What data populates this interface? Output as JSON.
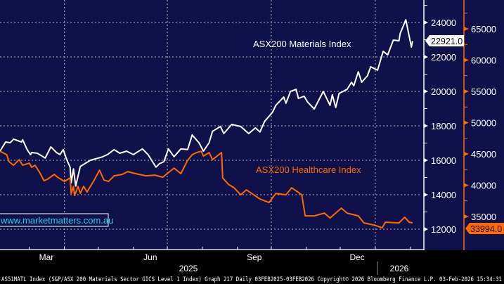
{
  "chart_data": {
    "type": "line",
    "x_range": [
      "2025-02-03",
      "2026-02-03"
    ],
    "x_tick_labels": [
      "Mar",
      "Jun",
      "Sep",
      "Dec"
    ],
    "year_labels": [
      "2025",
      "2026"
    ],
    "grid": true,
    "colors": {
      "background": "#10104a",
      "materials": "#ffffff",
      "healthcare": "#ff6a00",
      "website": "#19d3f0"
    },
    "left_axis": {
      "ticks": [
        "24000",
        "22000",
        "20000",
        "18000",
        "16000",
        "14000",
        "12000"
      ],
      "ylim": [
        11000,
        25300
      ]
    },
    "right_axis": {
      "ticks": [
        "65000",
        "60000",
        "55000",
        "50000",
        "45000",
        "40000",
        "35000"
      ],
      "ylim": [
        30000,
        69600
      ]
    },
    "series": [
      {
        "name": "ASX200 Materials Index",
        "axis": "left",
        "last_value_label": "22921.0",
        "points": [
          [
            "2025-02-03",
            16530
          ],
          [
            "2025-02-08",
            17060
          ],
          [
            "2025-02-12",
            17020
          ],
          [
            "2025-02-15",
            17230
          ],
          [
            "2025-02-22",
            17060
          ],
          [
            "2025-02-23",
            17190
          ],
          [
            "2025-02-27",
            16620
          ],
          [
            "2025-03-02",
            16330
          ],
          [
            "2025-03-03",
            16450
          ],
          [
            "2025-03-08",
            16410
          ],
          [
            "2025-03-12",
            16250
          ],
          [
            "2025-03-15",
            16130
          ],
          [
            "2025-03-20",
            16780
          ],
          [
            "2025-03-25",
            16450
          ],
          [
            "2025-03-28",
            16330
          ],
          [
            "2025-03-31",
            16620
          ],
          [
            "2025-04-03",
            16040
          ],
          [
            "2025-04-06",
            15600
          ],
          [
            "2025-04-07",
            14700
          ],
          [
            "2025-04-09",
            15500
          ],
          [
            "2025-04-11",
            14500
          ],
          [
            "2025-04-15",
            15640
          ],
          [
            "2025-04-20",
            15840
          ],
          [
            "2025-04-24",
            16000
          ],
          [
            "2025-05-01",
            16130
          ],
          [
            "2025-05-05",
            16210
          ],
          [
            "2025-05-09",
            16330
          ],
          [
            "2025-05-15",
            16620
          ],
          [
            "2025-05-20",
            16410
          ],
          [
            "2025-05-26",
            16530
          ],
          [
            "2025-06-01",
            16330
          ],
          [
            "2025-06-09",
            16660
          ],
          [
            "2025-06-14",
            16330
          ],
          [
            "2025-06-21",
            15600
          ],
          [
            "2025-06-24",
            15800
          ],
          [
            "2025-06-28",
            15920
          ],
          [
            "2025-07-02",
            16660
          ],
          [
            "2025-07-07",
            16210
          ],
          [
            "2025-07-13",
            16660
          ],
          [
            "2025-07-19",
            16620
          ],
          [
            "2025-07-23",
            17470
          ],
          [
            "2025-07-29",
            17020
          ],
          [
            "2025-08-02",
            16530
          ],
          [
            "2025-08-07",
            17020
          ],
          [
            "2025-08-10",
            17680
          ],
          [
            "2025-08-17",
            17960
          ],
          [
            "2025-08-20",
            17550
          ],
          [
            "2025-08-27",
            18080
          ],
          [
            "2025-09-04",
            17960
          ],
          [
            "2025-09-11",
            17550
          ],
          [
            "2025-09-17",
            17880
          ],
          [
            "2025-09-21",
            17640
          ],
          [
            "2025-09-25",
            18250
          ],
          [
            "2025-10-02",
            18780
          ],
          [
            "2025-10-05",
            19190
          ],
          [
            "2025-10-12",
            19670
          ],
          [
            "2025-10-14",
            19310
          ],
          [
            "2025-10-18",
            20000
          ],
          [
            "2025-10-23",
            20120
          ],
          [
            "2025-10-25",
            19590
          ],
          [
            "2025-10-30",
            19720
          ],
          [
            "2025-11-02",
            19390
          ],
          [
            "2025-11-08",
            18980
          ],
          [
            "2025-11-16",
            20000
          ],
          [
            "2025-11-22",
            19190
          ],
          [
            "2025-11-24",
            19800
          ],
          [
            "2025-11-27",
            19060
          ],
          [
            "2025-11-30",
            19880
          ],
          [
            "2025-12-07",
            20120
          ],
          [
            "2025-12-11",
            20530
          ],
          [
            "2025-12-13",
            20330
          ],
          [
            "2025-12-17",
            21140
          ],
          [
            "2025-12-20",
            20530
          ],
          [
            "2025-12-25",
            20900
          ],
          [
            "2025-12-28",
            21430
          ],
          [
            "2026-01-03",
            21230
          ],
          [
            "2026-01-08",
            22330
          ],
          [
            "2026-01-12",
            22120
          ],
          [
            "2026-01-17",
            22980
          ],
          [
            "2026-01-22",
            22940
          ],
          [
            "2026-01-23",
            23350
          ],
          [
            "2026-01-28",
            24160
          ],
          [
            "2026-02-02",
            22570
          ],
          [
            "2026-02-03",
            22921
          ]
        ]
      },
      {
        "name": "ASX200 Healthcare Index",
        "axis": "right",
        "last_value_label": "33994.0",
        "points": [
          [
            "2025-02-03",
            45440
          ],
          [
            "2025-02-09",
            44880
          ],
          [
            "2025-02-11",
            43760
          ],
          [
            "2025-02-15",
            43190
          ],
          [
            "2025-02-20",
            44090
          ],
          [
            "2025-02-23",
            43190
          ],
          [
            "2025-03-01",
            43530
          ],
          [
            "2025-03-03",
            42860
          ],
          [
            "2025-03-06",
            43190
          ],
          [
            "2025-03-10",
            42070
          ],
          [
            "2025-03-14",
            40720
          ],
          [
            "2025-03-17",
            40950
          ],
          [
            "2025-03-23",
            41730
          ],
          [
            "2025-03-26",
            41280
          ],
          [
            "2025-04-01",
            40610
          ],
          [
            "2025-04-06",
            41170
          ],
          [
            "2025-04-07",
            38700
          ],
          [
            "2025-04-09",
            39820
          ],
          [
            "2025-04-10",
            38360
          ],
          [
            "2025-04-13",
            39820
          ],
          [
            "2025-04-15",
            38700
          ],
          [
            "2025-04-18",
            39820
          ],
          [
            "2025-04-21",
            38920
          ],
          [
            "2025-04-27",
            40720
          ],
          [
            "2025-05-02",
            42410
          ],
          [
            "2025-05-06",
            40830
          ],
          [
            "2025-05-10",
            40610
          ],
          [
            "2025-05-15",
            41510
          ],
          [
            "2025-05-22",
            41730
          ],
          [
            "2025-05-27",
            42180
          ],
          [
            "2025-06-03",
            41850
          ],
          [
            "2025-06-12",
            41510
          ],
          [
            "2025-06-20",
            41620
          ],
          [
            "2025-06-27",
            41280
          ],
          [
            "2025-06-30",
            41730
          ],
          [
            "2025-07-07",
            42740
          ],
          [
            "2025-07-13",
            41850
          ],
          [
            "2025-07-19",
            43980
          ],
          [
            "2025-07-23",
            44880
          ],
          [
            "2025-07-27",
            45220
          ],
          [
            "2025-07-31",
            45440
          ],
          [
            "2025-08-02",
            44660
          ],
          [
            "2025-08-07",
            45220
          ],
          [
            "2025-08-10",
            44090
          ],
          [
            "2025-08-18",
            45220
          ],
          [
            "2025-08-19",
            41170
          ],
          [
            "2025-08-24",
            40160
          ],
          [
            "2025-08-29",
            39600
          ],
          [
            "2025-09-04",
            38470
          ],
          [
            "2025-09-09",
            39260
          ],
          [
            "2025-09-21",
            37800
          ],
          [
            "2025-09-29",
            37240
          ],
          [
            "2025-10-05",
            38700
          ],
          [
            "2025-10-14",
            38470
          ],
          [
            "2025-10-19",
            39600
          ],
          [
            "2025-10-28",
            38470
          ],
          [
            "2025-10-31",
            35100
          ],
          [
            "2025-11-08",
            35100
          ],
          [
            "2025-11-17",
            35550
          ],
          [
            "2025-11-22",
            34760
          ],
          [
            "2025-12-02",
            36340
          ],
          [
            "2025-12-07",
            35550
          ],
          [
            "2025-12-17",
            35100
          ],
          [
            "2025-12-22",
            33980
          ],
          [
            "2025-12-31",
            33640
          ],
          [
            "2026-01-07",
            33190
          ],
          [
            "2026-01-10",
            34090
          ],
          [
            "2026-01-22",
            33980
          ],
          [
            "2026-01-27",
            34880
          ],
          [
            "2026-01-31",
            34090
          ],
          [
            "2026-02-03",
            33994
          ]
        ]
      }
    ],
    "website": "www.marketmatters.com.au",
    "footer": "AS51MATL Index (S&P/ASX 200 Materials Sector GICS Level 1 Index) Graph 217 Daily 03FEB2025-03FEB2026 Copyright© 2026 Bloomberg Finance L.P. 03-Feb-2026 15:34:31"
  }
}
